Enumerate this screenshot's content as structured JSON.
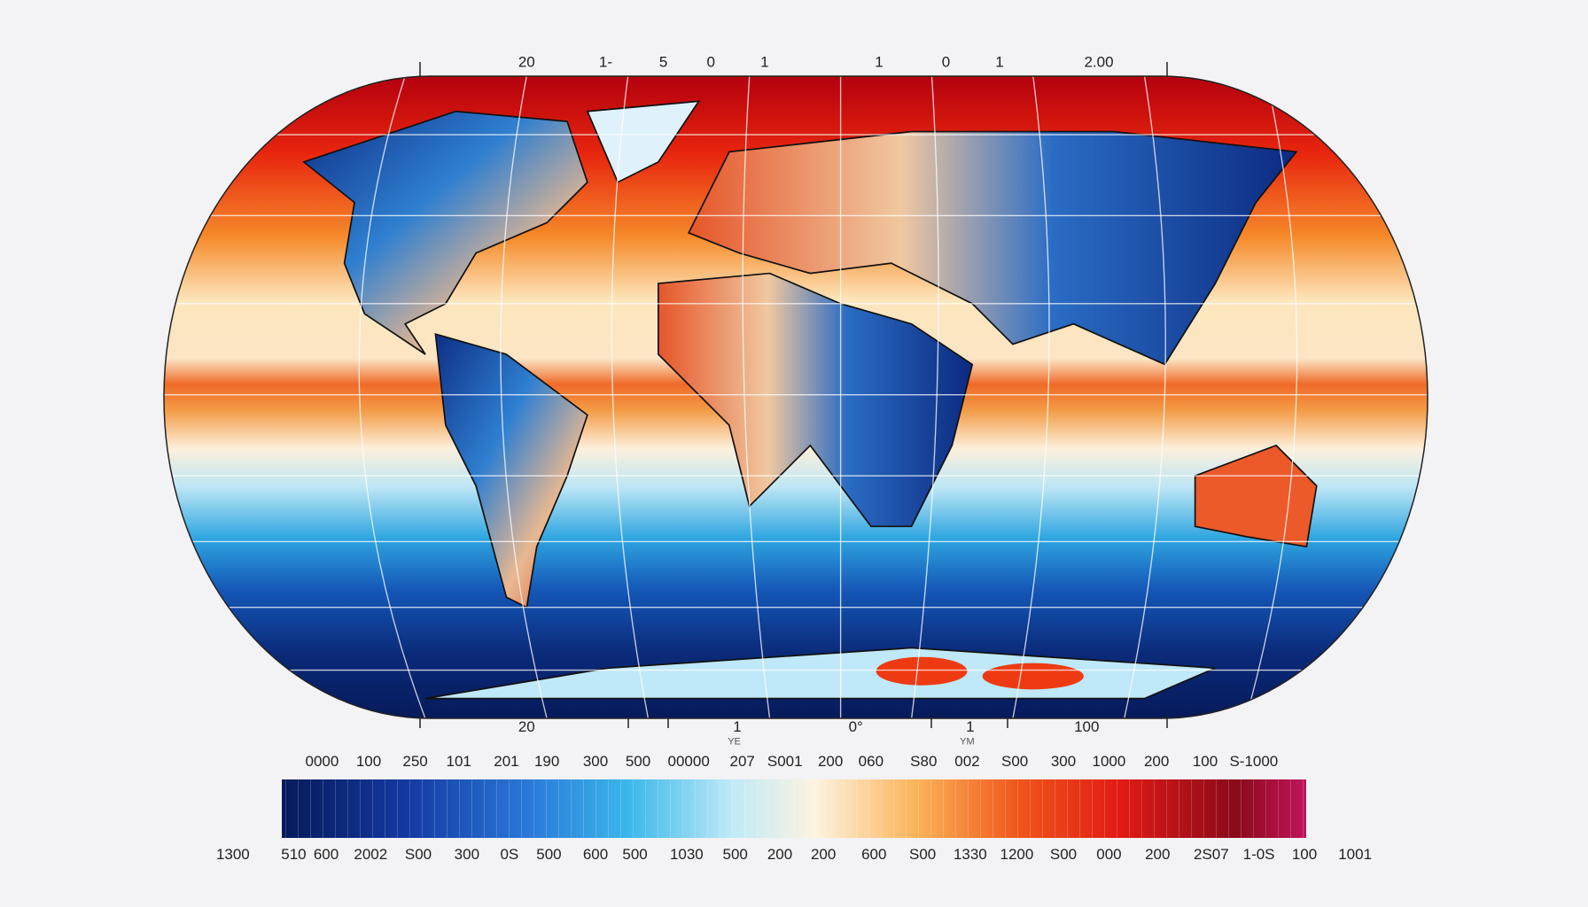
{
  "map": {
    "top_labels": [
      "20",
      "1-",
      "5",
      "0",
      "1",
      "1",
      "0",
      "1",
      "2.00"
    ],
    "bottom_labels": [
      "20",
      "1",
      "0°",
      "1",
      "100"
    ],
    "axis_notes": [
      "YE",
      "YM"
    ],
    "colorbar_top_labels": [
      "0000",
      "100",
      "250",
      "101",
      "201",
      "190",
      "300",
      "500",
      "00000",
      "207",
      "S001",
      "200",
      "060",
      "S80",
      "002",
      "S00",
      "300",
      "1000",
      "200",
      "100",
      "S-1000"
    ],
    "colorbar_bottom_labels": [
      "1300",
      "510",
      "600",
      "2002",
      "S00",
      "300",
      "0S",
      "500",
      "600",
      "500",
      "1030",
      "500",
      "200",
      "200",
      "600",
      "S00",
      "1330",
      "1200",
      "S00",
      "000",
      "200",
      "2S07",
      "1-0S",
      "100",
      "1001"
    ]
  }
}
